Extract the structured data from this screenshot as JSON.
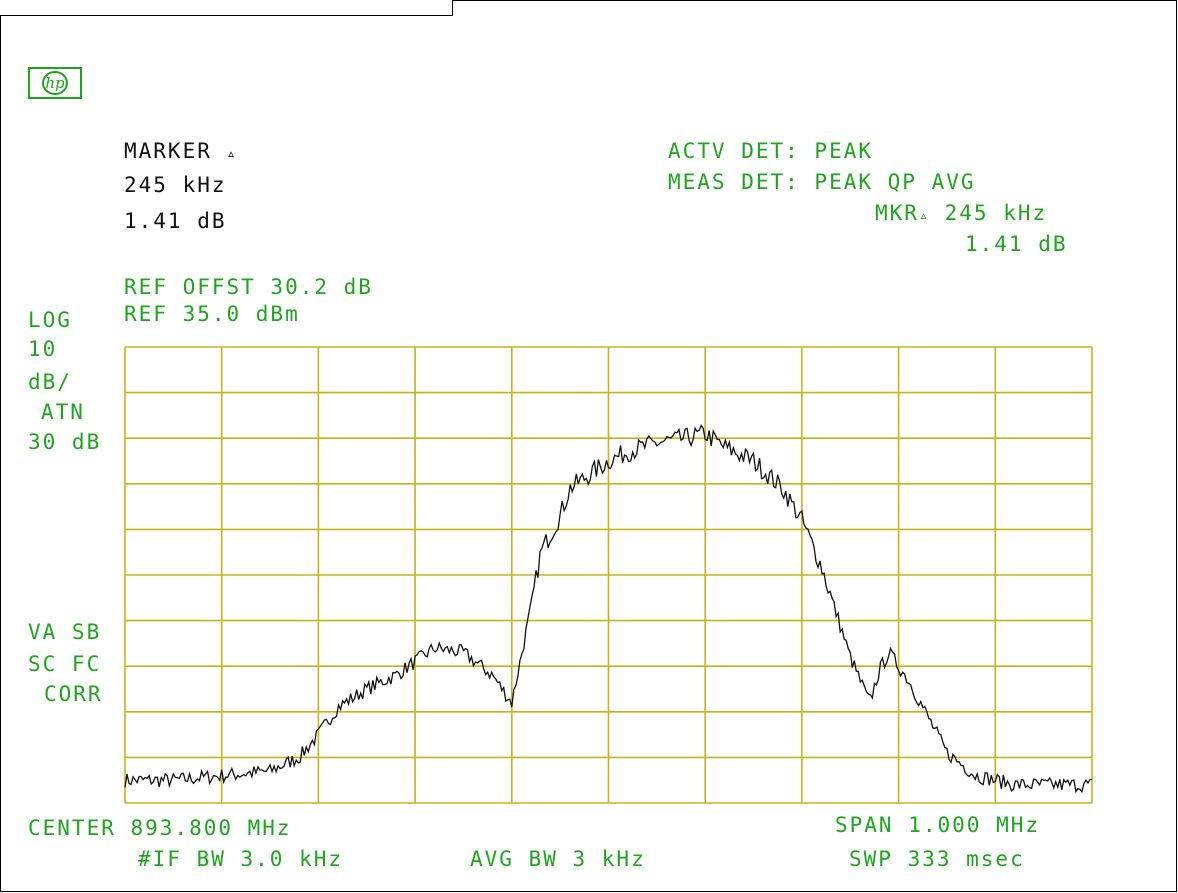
{
  "instrument": {
    "logo_text": "hp"
  },
  "marker": {
    "label": "MARKER",
    "delta_symbol": "▵",
    "freq": "245 kHz",
    "level": "1.41 dB"
  },
  "detector": {
    "active": "ACTV DET: PEAK",
    "measured": "MEAS DET: PEAK QP AVG"
  },
  "marker_readout": {
    "label": "MKR",
    "delta_symbol": "▵",
    "freq": "245 kHz",
    "level": "1.41 dB"
  },
  "reference": {
    "offset": "REF OFFST 30.2 dB",
    "level": "REF 35.0 dBm"
  },
  "left_panel": {
    "scale_mode": "LOG",
    "scale_value": "10",
    "scale_unit": "dB/",
    "atten_label": "ATN",
    "atten_value": "30 dB",
    "va_sb": "VA SB",
    "sc_fc": "SC FC",
    "corr": "CORR"
  },
  "footer": {
    "center": "CENTER 893.800 MHz",
    "span": "SPAN 1.000 MHz",
    "if_bw": "#IF BW 3.0 kHz",
    "avg_bw": "AVG BW 3 kHz",
    "sweep": "SWP 333 msec"
  },
  "colors": {
    "graticule": "#c8b418",
    "annotation": "#1ea51e",
    "trace": "#111111"
  },
  "chart_data": {
    "type": "line",
    "xlabel": "",
    "ylabel": "",
    "x_unit": "MHz",
    "xlim": [
      893.3,
      894.3
    ],
    "ylim": [
      -65,
      35
    ],
    "x_divisions": 10,
    "y_divisions": 10,
    "grid": true,
    "series": [
      {
        "x": [
          893.3,
          893.35,
          893.4,
          893.45,
          893.48,
          893.5,
          893.52,
          893.55,
          893.58,
          893.6,
          893.62,
          893.65,
          893.68,
          893.7,
          893.72,
          893.73,
          893.75,
          893.76,
          893.78,
          893.8,
          893.82,
          893.85,
          893.88,
          893.9,
          893.92,
          893.95,
          893.98,
          894.0,
          894.02,
          894.05,
          894.07,
          894.08,
          894.09,
          894.1,
          894.11,
          894.12,
          894.15,
          894.18,
          894.2,
          894.22,
          894.25,
          894.28,
          894.3
        ],
        "y": [
          -60,
          -60,
          -59,
          -58,
          -55,
          -50,
          -44,
          -40,
          -37,
          -34,
          -31,
          -32,
          -37,
          -43,
          -22,
          -10,
          -2,
          4,
          7,
          10,
          12,
          14,
          15,
          16,
          13,
          10,
          4,
          -3,
          -13,
          -33,
          -43,
          -36,
          -32,
          -35,
          -38,
          -42,
          -54,
          -59,
          -60,
          -61,
          -61,
          -61,
          -61
        ]
      }
    ]
  }
}
